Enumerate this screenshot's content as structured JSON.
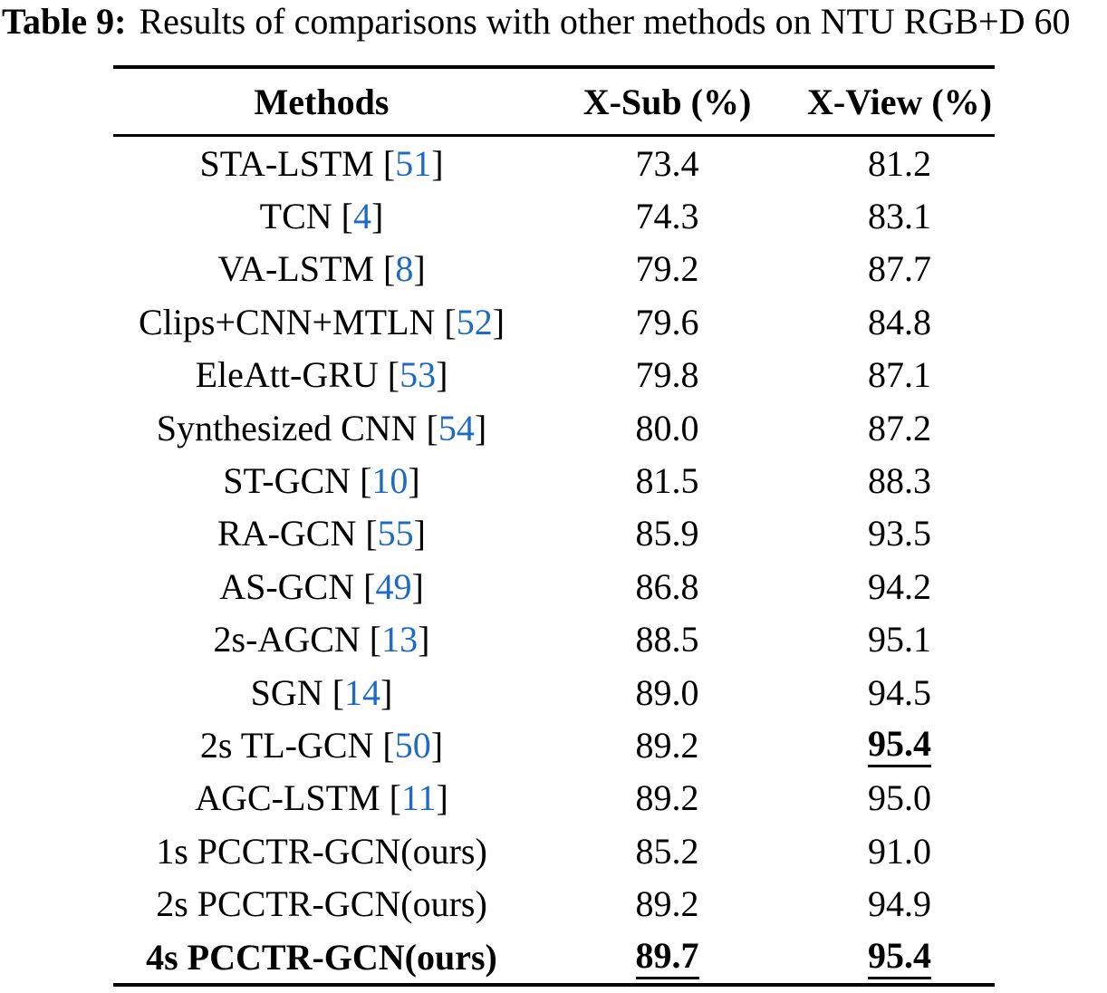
{
  "caption": {
    "label": "Table 9:",
    "text": "Results of comparisons with other methods on NTU RGB+D 60"
  },
  "colors": {
    "citation_blue": "#1f6bc4",
    "text": "#000000",
    "background": "#ffffff"
  },
  "citation_format": {
    "open": "[",
    "close": "]"
  },
  "table": {
    "headers": [
      "Methods",
      "X-Sub (%)",
      "X-View (%)"
    ],
    "rows": [
      {
        "method": "STA-LSTM",
        "cite": "51",
        "method_bold": false,
        "xsub": {
          "v": "73.4",
          "bold": false,
          "underline": false
        },
        "xview": {
          "v": "81.2",
          "bold": false,
          "underline": false
        }
      },
      {
        "method": "TCN",
        "cite": "4",
        "method_bold": false,
        "xsub": {
          "v": "74.3",
          "bold": false,
          "underline": false
        },
        "xview": {
          "v": "83.1",
          "bold": false,
          "underline": false
        }
      },
      {
        "method": "VA-LSTM",
        "cite": "8",
        "method_bold": false,
        "xsub": {
          "v": "79.2",
          "bold": false,
          "underline": false
        },
        "xview": {
          "v": "87.7",
          "bold": false,
          "underline": false
        }
      },
      {
        "method": "Clips+CNN+MTLN",
        "cite": "52",
        "method_bold": false,
        "xsub": {
          "v": "79.6",
          "bold": false,
          "underline": false
        },
        "xview": {
          "v": "84.8",
          "bold": false,
          "underline": false
        }
      },
      {
        "method": "EleAtt-GRU",
        "cite": "53",
        "method_bold": false,
        "xsub": {
          "v": "79.8",
          "bold": false,
          "underline": false
        },
        "xview": {
          "v": "87.1",
          "bold": false,
          "underline": false
        }
      },
      {
        "method": "Synthesized CNN",
        "cite": "54",
        "method_bold": false,
        "xsub": {
          "v": "80.0",
          "bold": false,
          "underline": false
        },
        "xview": {
          "v": "87.2",
          "bold": false,
          "underline": false
        }
      },
      {
        "method": "ST-GCN",
        "cite": "10",
        "method_bold": false,
        "xsub": {
          "v": "81.5",
          "bold": false,
          "underline": false
        },
        "xview": {
          "v": "88.3",
          "bold": false,
          "underline": false
        }
      },
      {
        "method": "RA-GCN",
        "cite": "55",
        "method_bold": false,
        "xsub": {
          "v": "85.9",
          "bold": false,
          "underline": false
        },
        "xview": {
          "v": "93.5",
          "bold": false,
          "underline": false
        }
      },
      {
        "method": "AS-GCN",
        "cite": "49",
        "method_bold": false,
        "xsub": {
          "v": "86.8",
          "bold": false,
          "underline": false
        },
        "xview": {
          "v": "94.2",
          "bold": false,
          "underline": false
        }
      },
      {
        "method": "2s-AGCN",
        "cite": "13",
        "method_bold": false,
        "xsub": {
          "v": "88.5",
          "bold": false,
          "underline": false
        },
        "xview": {
          "v": "95.1",
          "bold": false,
          "underline": false
        }
      },
      {
        "method": "SGN",
        "cite": "14",
        "method_bold": false,
        "xsub": {
          "v": "89.0",
          "bold": false,
          "underline": false
        },
        "xview": {
          "v": "94.5",
          "bold": false,
          "underline": false
        }
      },
      {
        "method": "2s TL-GCN",
        "cite": "50",
        "method_bold": false,
        "xsub": {
          "v": "89.2",
          "bold": false,
          "underline": false
        },
        "xview": {
          "v": "95.4",
          "bold": true,
          "underline": true
        }
      },
      {
        "method": "AGC-LSTM",
        "cite": "11",
        "method_bold": false,
        "xsub": {
          "v": "89.2",
          "bold": false,
          "underline": false
        },
        "xview": {
          "v": "95.0",
          "bold": false,
          "underline": false
        }
      },
      {
        "method": "1s PCCTR-GCN(ours)",
        "cite": null,
        "method_bold": false,
        "xsub": {
          "v": "85.2",
          "bold": false,
          "underline": false
        },
        "xview": {
          "v": "91.0",
          "bold": false,
          "underline": false
        }
      },
      {
        "method": "2s PCCTR-GCN(ours)",
        "cite": null,
        "method_bold": false,
        "xsub": {
          "v": "89.2",
          "bold": false,
          "underline": false
        },
        "xview": {
          "v": "94.9",
          "bold": false,
          "underline": false
        }
      },
      {
        "method": "4s PCCTR-GCN(ours)",
        "cite": null,
        "method_bold": true,
        "xsub": {
          "v": "89.7",
          "bold": true,
          "underline": true
        },
        "xview": {
          "v": "95.4",
          "bold": true,
          "underline": true
        }
      }
    ]
  }
}
